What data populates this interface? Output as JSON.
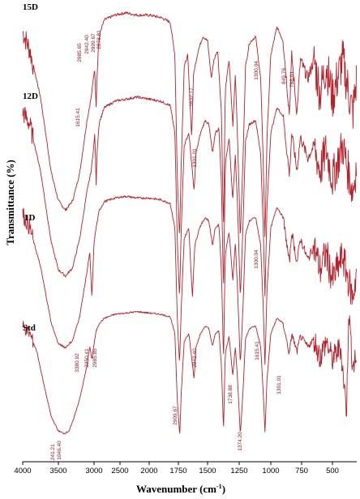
{
  "chart_data": {
    "type": "line",
    "xlabel": "Wavenumber (cm",
    "xlabel_sup": "-1",
    "xlabel_close": ")",
    "ylabel": "Transmittance (%)",
    "xlim": [
      4000,
      380
    ],
    "x_reversed": true,
    "xticks": [
      4000,
      3500,
      3000,
      2500,
      2000,
      1750,
      1500,
      1250,
      1000,
      750,
      500
    ],
    "series": [
      {
        "name": "15D",
        "trace": [
          [
            4000,
            0.9
          ],
          [
            3900,
            0.82
          ],
          [
            3750,
            0.62
          ],
          [
            3600,
            0.3
          ],
          [
            3500,
            0.18
          ],
          [
            3400,
            0.14
          ],
          [
            3300,
            0.18
          ],
          [
            3200,
            0.3
          ],
          [
            3100,
            0.52
          ],
          [
            3040,
            0.62
          ],
          [
            2990,
            0.75
          ],
          [
            2960,
            0.58
          ],
          [
            2940,
            0.72
          ],
          [
            2915,
            0.84
          ],
          [
            2880,
            0.9
          ],
          [
            2800,
            0.95
          ],
          [
            2600,
            0.97
          ],
          [
            2400,
            0.98
          ],
          [
            2200,
            0.97
          ],
          [
            2000,
            0.97
          ],
          [
            1900,
            0.96
          ],
          [
            1820,
            0.94
          ],
          [
            1780,
            0.8
          ],
          [
            1760,
            0.3
          ],
          [
            1740,
            0.02
          ],
          [
            1725,
            0.35
          ],
          [
            1700,
            0.75
          ],
          [
            1670,
            0.8
          ],
          [
            1636,
            0.45
          ],
          [
            1620,
            0.72
          ],
          [
            1580,
            0.82
          ],
          [
            1540,
            0.88
          ],
          [
            1500,
            0.86
          ],
          [
            1470,
            0.7
          ],
          [
            1450,
            0.78
          ],
          [
            1420,
            0.82
          ],
          [
            1390,
            0.55
          ],
          [
            1374,
            0.05
          ],
          [
            1360,
            0.65
          ],
          [
            1330,
            0.78
          ],
          [
            1300,
            0.5
          ],
          [
            1280,
            0.72
          ],
          [
            1260,
            0.4
          ],
          [
            1241,
            0.02
          ],
          [
            1220,
            0.35
          ],
          [
            1200,
            0.75
          ],
          [
            1170,
            0.85
          ],
          [
            1120,
            0.88
          ],
          [
            1080,
            0.7
          ],
          [
            1060,
            0.35
          ],
          [
            1046,
            0.02
          ],
          [
            1030,
            0.45
          ],
          [
            1000,
            0.8
          ],
          [
            950,
            0.92
          ],
          [
            900,
            0.86
          ],
          [
            849,
            0.55
          ],
          [
            830,
            0.8
          ],
          [
            788,
            0.55
          ],
          [
            760,
            0.78
          ],
          [
            700,
            0.7
          ],
          [
            650,
            0.78
          ],
          [
            600,
            0.64
          ],
          [
            550,
            0.76
          ],
          [
            500,
            0.62
          ],
          [
            450,
            0.78
          ],
          [
            400,
            0.55
          ],
          [
            380,
            0.7
          ]
        ],
        "peak_labels": [
          "2985.65",
          "2942.40",
          "2909.67",
          "2878.81",
          "1632.77",
          "1300.04",
          "849.76",
          "788.01"
        ]
      },
      {
        "name": "12D",
        "trace": [
          [
            4000,
            0.9
          ],
          [
            3900,
            0.84
          ],
          [
            3750,
            0.62
          ],
          [
            3600,
            0.28
          ],
          [
            3500,
            0.15
          ],
          [
            3400,
            0.12
          ],
          [
            3300,
            0.16
          ],
          [
            3200,
            0.3
          ],
          [
            3100,
            0.52
          ],
          [
            3040,
            0.62
          ],
          [
            2985,
            0.8
          ],
          [
            2960,
            0.55
          ],
          [
            2940,
            0.72
          ],
          [
            2900,
            0.85
          ],
          [
            2800,
            0.92
          ],
          [
            2600,
            0.95
          ],
          [
            2400,
            0.96
          ],
          [
            2200,
            0.97
          ],
          [
            2000,
            0.96
          ],
          [
            1900,
            0.95
          ],
          [
            1820,
            0.93
          ],
          [
            1780,
            0.8
          ],
          [
            1760,
            0.3
          ],
          [
            1740,
            0.02
          ],
          [
            1725,
            0.35
          ],
          [
            1700,
            0.74
          ],
          [
            1660,
            0.8
          ],
          [
            1615,
            0.52
          ],
          [
            1600,
            0.7
          ],
          [
            1560,
            0.8
          ],
          [
            1520,
            0.86
          ],
          [
            1490,
            0.84
          ],
          [
            1460,
            0.7
          ],
          [
            1440,
            0.8
          ],
          [
            1410,
            0.82
          ],
          [
            1390,
            0.55
          ],
          [
            1374,
            0.05
          ],
          [
            1360,
            0.65
          ],
          [
            1330,
            0.78
          ],
          [
            1301,
            0.48
          ],
          [
            1280,
            0.7
          ],
          [
            1260,
            0.4
          ],
          [
            1241,
            0.02
          ],
          [
            1220,
            0.35
          ],
          [
            1200,
            0.76
          ],
          [
            1170,
            0.84
          ],
          [
            1120,
            0.86
          ],
          [
            1080,
            0.7
          ],
          [
            1060,
            0.35
          ],
          [
            1046,
            0.02
          ],
          [
            1030,
            0.45
          ],
          [
            1000,
            0.8
          ],
          [
            950,
            0.92
          ],
          [
            900,
            0.88
          ],
          [
            849,
            0.6
          ],
          [
            830,
            0.8
          ],
          [
            788,
            0.62
          ],
          [
            760,
            0.78
          ],
          [
            700,
            0.68
          ],
          [
            650,
            0.74
          ],
          [
            600,
            0.62
          ],
          [
            550,
            0.72
          ],
          [
            500,
            0.58
          ],
          [
            450,
            0.74
          ],
          [
            400,
            0.52
          ],
          [
            380,
            0.66
          ]
        ],
        "peak_labels": [
          "1615.41",
          "1301.01"
        ]
      },
      {
        "name": "1D",
        "trace": [
          [
            4000,
            0.88
          ],
          [
            3900,
            0.8
          ],
          [
            3750,
            0.58
          ],
          [
            3600,
            0.26
          ],
          [
            3500,
            0.14
          ],
          [
            3400,
            0.12
          ],
          [
            3300,
            0.16
          ],
          [
            3200,
            0.3
          ],
          [
            3100,
            0.55
          ],
          [
            3060,
            0.66
          ],
          [
            3030,
            0.4
          ],
          [
            3000,
            0.72
          ],
          [
            2960,
            0.8
          ],
          [
            2900,
            0.9
          ],
          [
            2800,
            0.95
          ],
          [
            2600,
            0.97
          ],
          [
            2400,
            0.98
          ],
          [
            2200,
            0.97
          ],
          [
            2000,
            0.97
          ],
          [
            1900,
            0.96
          ],
          [
            1820,
            0.94
          ],
          [
            1780,
            0.8
          ],
          [
            1760,
            0.3
          ],
          [
            1740,
            0.02
          ],
          [
            1725,
            0.35
          ],
          [
            1700,
            0.74
          ],
          [
            1660,
            0.8
          ],
          [
            1630,
            0.4
          ],
          [
            1610,
            0.7
          ],
          [
            1570,
            0.8
          ],
          [
            1520,
            0.86
          ],
          [
            1490,
            0.84
          ],
          [
            1460,
            0.7
          ],
          [
            1440,
            0.8
          ],
          [
            1410,
            0.82
          ],
          [
            1390,
            0.55
          ],
          [
            1374,
            0.05
          ],
          [
            1360,
            0.65
          ],
          [
            1330,
            0.78
          ],
          [
            1300,
            0.5
          ],
          [
            1280,
            0.72
          ],
          [
            1260,
            0.4
          ],
          [
            1241,
            0.02
          ],
          [
            1220,
            0.35
          ],
          [
            1200,
            0.76
          ],
          [
            1170,
            0.84
          ],
          [
            1120,
            0.86
          ],
          [
            1080,
            0.7
          ],
          [
            1060,
            0.35
          ],
          [
            1046,
            0.02
          ],
          [
            1030,
            0.45
          ],
          [
            1000,
            0.8
          ],
          [
            950,
            0.92
          ],
          [
            900,
            0.86
          ],
          [
            849,
            0.6
          ],
          [
            830,
            0.78
          ],
          [
            788,
            0.6
          ],
          [
            760,
            0.74
          ],
          [
            700,
            0.62
          ],
          [
            650,
            0.7
          ],
          [
            600,
            0.56
          ],
          [
            550,
            0.66
          ],
          [
            500,
            0.5
          ],
          [
            450,
            0.64
          ],
          [
            400,
            0.4
          ],
          [
            380,
            0.56
          ]
        ],
        "peak_labels": [
          "1300.04"
        ]
      },
      {
        "name": "Std",
        "trace": [
          [
            4000,
            0.86
          ],
          [
            3900,
            0.8
          ],
          [
            3800,
            0.66
          ],
          [
            3700,
            0.4
          ],
          [
            3600,
            0.16
          ],
          [
            3500,
            0.05
          ],
          [
            3420,
            0.03
          ],
          [
            3350,
            0.05
          ],
          [
            3300,
            0.12
          ],
          [
            3200,
            0.3
          ],
          [
            3100,
            0.55
          ],
          [
            3060,
            0.7
          ],
          [
            3030,
            0.6
          ],
          [
            3000,
            0.72
          ],
          [
            2960,
            0.82
          ],
          [
            2900,
            0.88
          ],
          [
            2800,
            0.92
          ],
          [
            2600,
            0.95
          ],
          [
            2400,
            0.96
          ],
          [
            2200,
            0.97
          ],
          [
            2000,
            0.96
          ],
          [
            1900,
            0.95
          ],
          [
            1820,
            0.93
          ],
          [
            1780,
            0.8
          ],
          [
            1760,
            0.3
          ],
          [
            1738,
            0.02
          ],
          [
            1725,
            0.35
          ],
          [
            1700,
            0.74
          ],
          [
            1660,
            0.8
          ],
          [
            1615,
            0.45
          ],
          [
            1600,
            0.7
          ],
          [
            1560,
            0.8
          ],
          [
            1520,
            0.86
          ],
          [
            1490,
            0.84
          ],
          [
            1460,
            0.7
          ],
          [
            1440,
            0.8
          ],
          [
            1410,
            0.82
          ],
          [
            1390,
            0.55
          ],
          [
            1374,
            0.05
          ],
          [
            1360,
            0.65
          ],
          [
            1330,
            0.78
          ],
          [
            1301,
            0.48
          ],
          [
            1280,
            0.7
          ],
          [
            1260,
            0.4
          ],
          [
            1241,
            0.02
          ],
          [
            1220,
            0.35
          ],
          [
            1200,
            0.76
          ],
          [
            1170,
            0.84
          ],
          [
            1120,
            0.86
          ],
          [
            1080,
            0.7
          ],
          [
            1060,
            0.35
          ],
          [
            1046,
            0.04
          ],
          [
            1030,
            0.45
          ],
          [
            1000,
            0.8
          ],
          [
            950,
            0.92
          ],
          [
            900,
            0.88
          ],
          [
            849,
            0.64
          ],
          [
            830,
            0.8
          ],
          [
            788,
            0.66
          ],
          [
            760,
            0.78
          ],
          [
            700,
            0.7
          ],
          [
            650,
            0.76
          ],
          [
            600,
            0.62
          ],
          [
            550,
            0.74
          ],
          [
            500,
            0.6
          ],
          [
            460,
            0.7
          ],
          [
            430,
            0.2
          ],
          [
            420,
            0.98
          ],
          [
            400,
            0.55
          ],
          [
            380,
            0.62
          ]
        ],
        "peak_labels": [
          "3380.92",
          "3350.41",
          "2985.85",
          "2942.40",
          "2909.67",
          "1738.88",
          "1615.41",
          "1374.20",
          "1301.01",
          "1241.21",
          "1046.40"
        ]
      }
    ],
    "grid": false,
    "legend": "none"
  }
}
